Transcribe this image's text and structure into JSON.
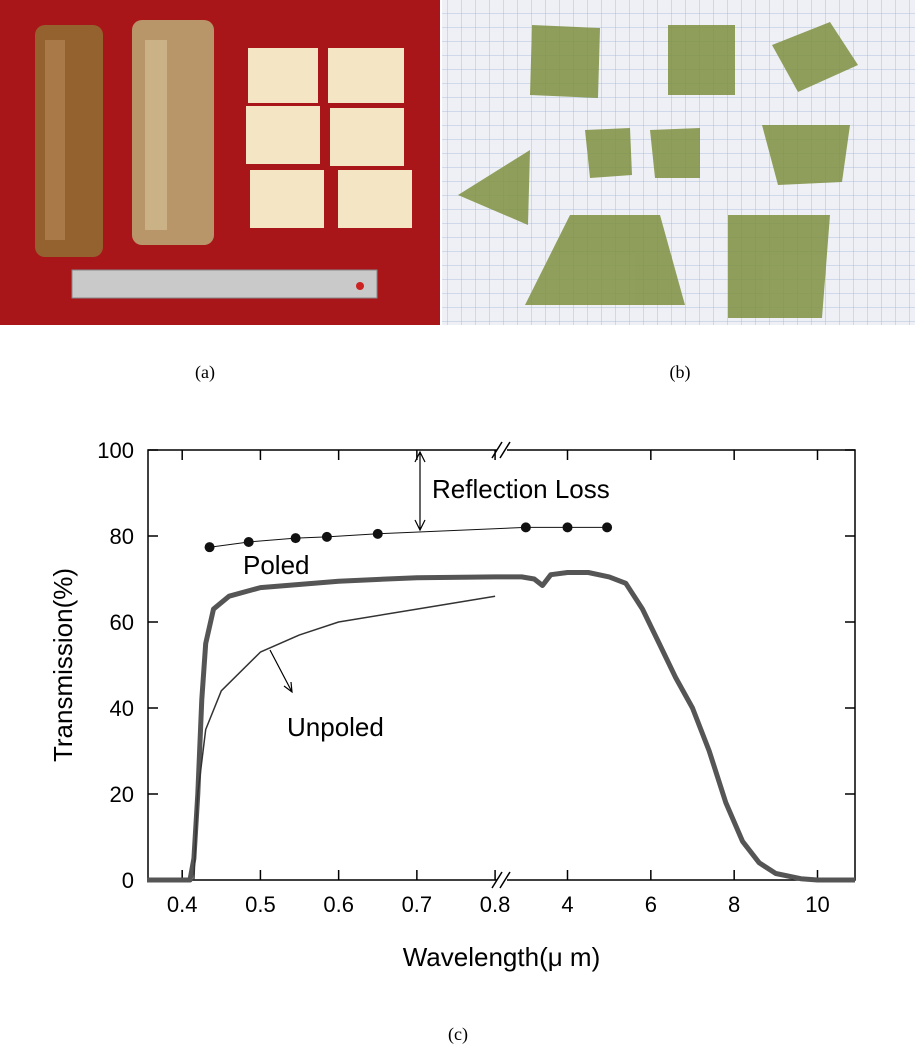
{
  "captions": [
    "(a)",
    "(b)",
    "(c)"
  ],
  "chart_data": {
    "type": "line",
    "x_label": "Wavelength(μ m)",
    "y_label": "Transmission(%)",
    "ylim": [
      0,
      100
    ],
    "yticks": [
      0,
      20,
      40,
      60,
      80,
      100
    ],
    "x_segments": [
      {
        "xlim": [
          0.355,
          0.805
        ],
        "xticks": [
          0.4,
          0.5,
          0.6,
          0.7,
          0.8
        ]
      },
      {
        "xlim": [
          2.5,
          10.9
        ],
        "xticks": [
          4,
          6,
          8,
          10
        ]
      }
    ],
    "annotations": [
      "Reflection Loss"
    ],
    "series": [
      {
        "name": "Poled",
        "color": "#555555",
        "x": [
          0.355,
          0.41,
          0.415,
          0.42,
          0.425,
          0.43,
          0.44,
          0.46,
          0.5,
          0.6,
          0.7,
          0.8,
          2.9,
          3.2,
          3.4,
          3.6,
          4.0,
          4.5,
          5.0,
          5.4,
          5.8,
          6.2,
          6.6,
          7.0,
          7.4,
          7.8,
          8.2,
          8.6,
          9.0,
          9.6,
          10.0,
          10.9
        ],
        "values": [
          0,
          0,
          5,
          20,
          42,
          55,
          63,
          66,
          68,
          69.5,
          70.3,
          70.5,
          70.5,
          70,
          68.5,
          71,
          71.5,
          71.5,
          70.5,
          69,
          63,
          55,
          47,
          40,
          30,
          18,
          9,
          4,
          1.5,
          0.3,
          0,
          0
        ]
      },
      {
        "name": "Unpoled",
        "color": "#333333",
        "x": [
          0.415,
          0.42,
          0.43,
          0.45,
          0.5,
          0.55,
          0.6,
          0.7,
          0.8
        ],
        "values": [
          0,
          20,
          35,
          44,
          53,
          57,
          60,
          63,
          66
        ]
      },
      {
        "color": "#111111",
        "marker": "dot",
        "x": [
          0.435,
          0.485,
          0.545,
          0.585,
          0.65,
          3.0,
          4.0,
          4.95
        ],
        "values": [
          77.4,
          78.6,
          79.5,
          79.8,
          80.5,
          82,
          82,
          82
        ]
      }
    ]
  }
}
